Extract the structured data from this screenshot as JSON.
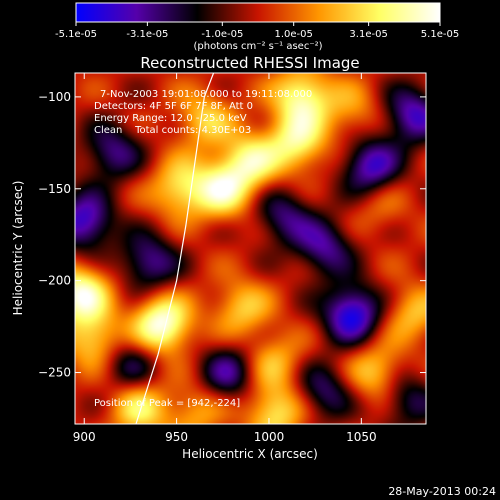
{
  "chart_data": {
    "type": "heatmap",
    "title": "Reconstructed RHESSI Image",
    "xlabel": "Heliocentric X (arcsec)",
    "ylabel": "Heliocentric Y (arcsec)",
    "xlim": [
      895,
      1085
    ],
    "ylim": [
      -278,
      -87
    ],
    "x_ticks": [
      900,
      950,
      1000,
      1050
    ],
    "y_ticks": [
      -100,
      -150,
      -200,
      -250
    ],
    "colorbar": {
      "range": [
        -5.1e-05,
        5.1e-05
      ],
      "tick_labels": [
        "-5.1e-05",
        "-3.1e-05",
        "-1.0e-05",
        "1.0e-05",
        "3.1e-05",
        "5.1e-05"
      ],
      "tick_values": [
        -5.1e-05,
        -3.1e-05,
        -1e-05,
        1e-05,
        3.1e-05,
        5.1e-05
      ],
      "unit_label": "(photons cm⁻² s⁻¹ asec⁻²)",
      "palette": [
        "#0000ff",
        "#5500aa",
        "#000000",
        "#c81400",
        "#ff9600",
        "#ffff64",
        "#ffffff"
      ]
    },
    "annotations": [
      "7-Nov-2003 19:01:08.000 to 19:11:08.000",
      "Detectors: 4F 5F 6F 7F 8F, Att 0",
      "Energy Range: 12.0 - 25.0 keV",
      "Clean    Total counts: 4.30E+03"
    ],
    "peak_label": "Position of Peak = [942,-224]",
    "peak": [
      942,
      -224
    ],
    "limb_curve": [
      [
        928,
        -278
      ],
      [
        940,
        -240
      ],
      [
        950,
        -200
      ],
      [
        955,
        -170
      ],
      [
        960,
        -135
      ],
      [
        965,
        -100
      ],
      [
        970,
        -87
      ]
    ],
    "sources": [
      {
        "x": 942,
        "y": -224,
        "value": 5.1e-05
      },
      {
        "x": 898,
        "y": -207,
        "value": 4.6e-05
      },
      {
        "x": 952,
        "y": -150,
        "value": 3.2e-05
      },
      {
        "x": 975,
        "y": -150,
        "value": 3.9e-05
      },
      {
        "x": 990,
        "y": -135,
        "value": 3.5e-05
      },
      {
        "x": 1015,
        "y": -125,
        "value": 3.7e-05
      },
      {
        "x": 1018,
        "y": -100,
        "value": 4.1e-05
      },
      {
        "x": 965,
        "y": -112,
        "value": 2.6e-05
      },
      {
        "x": 905,
        "y": -232,
        "value": 3e-05
      },
      {
        "x": 985,
        "y": -215,
        "value": 2.6e-05
      },
      {
        "x": 1003,
        "y": -244,
        "value": 2.2e-05
      },
      {
        "x": 1058,
        "y": -250,
        "value": 2.8e-05
      },
      {
        "x": 1078,
        "y": -218,
        "value": 2.4e-05
      },
      {
        "x": 930,
        "y": -270,
        "value": 3.1e-05
      },
      {
        "x": 960,
        "y": -272,
        "value": 2e-05
      },
      {
        "x": 1003,
        "y": -272,
        "value": 3.3e-05
      },
      {
        "x": 1045,
        "y": -108,
        "value": 1.8e-05
      },
      {
        "x": 1060,
        "y": -160,
        "value": 1.2e-05
      },
      {
        "x": 900,
        "y": -168,
        "value": -4.2e-05
      },
      {
        "x": 915,
        "y": -130,
        "value": -3e-05
      },
      {
        "x": 935,
        "y": -190,
        "value": -3.3e-05
      },
      {
        "x": 1045,
        "y": -218,
        "value": -4.8e-05
      },
      {
        "x": 1055,
        "y": -138,
        "value": -4e-05
      },
      {
        "x": 1078,
        "y": -110,
        "value": -3.8e-05
      },
      {
        "x": 1030,
        "y": -182,
        "value": -3.2e-05
      },
      {
        "x": 1008,
        "y": -165,
        "value": -2.8e-05
      },
      {
        "x": 978,
        "y": -250,
        "value": -3e-05
      },
      {
        "x": 1030,
        "y": -260,
        "value": -2.7e-05
      },
      {
        "x": 925,
        "y": -245,
        "value": -2.4e-05
      },
      {
        "x": 1075,
        "y": -265,
        "value": -2.5e-05
      }
    ]
  },
  "footer": {
    "date": "28-May-2013 00:24"
  }
}
